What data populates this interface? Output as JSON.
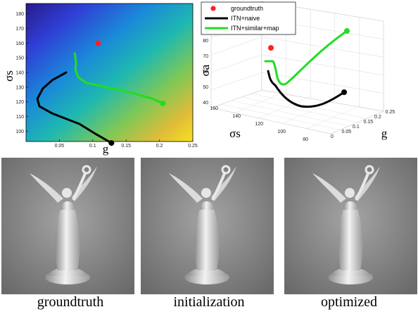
{
  "chart_data": [
    {
      "type": "line",
      "title": "",
      "xlabel": "g",
      "ylabel": "σs",
      "xlim": [
        0.0,
        0.25
      ],
      "ylim": [
        93,
        187
      ],
      "xticks": [
        "0.05",
        "0.1",
        "0.15",
        "0.2",
        "0.25"
      ],
      "yticks": [
        "100",
        "110",
        "120",
        "130",
        "140",
        "150",
        "160",
        "170",
        "180"
      ],
      "background": "heatmap gradient (blue top-left to yellow bottom-right)",
      "grid": false,
      "series": [
        {
          "name": "groundtruth",
          "color": "#ff2020",
          "points": [
            [
              0.108,
              160
            ]
          ]
        },
        {
          "name": "ITN+naive",
          "color": "#000000",
          "points": [
            [
              0.06,
              140
            ],
            [
              0.04,
              135
            ],
            [
              0.025,
              129
            ],
            [
              0.017,
              122
            ],
            [
              0.02,
              117
            ],
            [
              0.04,
              112
            ],
            [
              0.08,
              105
            ],
            [
              0.105,
              98
            ],
            [
              0.128,
              92
            ]
          ]
        },
        {
          "name": "ITN+similar+map",
          "color": "#22dd22",
          "points": [
            [
              0.073,
              153
            ],
            [
              0.075,
              147
            ],
            [
              0.074,
              142
            ],
            [
              0.078,
              137
            ],
            [
              0.09,
              133
            ],
            [
              0.12,
              130
            ],
            [
              0.16,
              126
            ],
            [
              0.19,
              122
            ],
            [
              0.205,
              119
            ]
          ]
        }
      ]
    },
    {
      "type": "line",
      "title": "",
      "xlabel": "g",
      "ylabel": "σs",
      "zlabel": "σa",
      "xticks": [
        "0",
        "0.05",
        "0.1",
        "0.15",
        "0.2",
        "0.25"
      ],
      "yticks": [
        "160",
        "140",
        "120",
        "100",
        "80"
      ],
      "zticks": [
        "40",
        "50",
        "60",
        "70",
        "80"
      ],
      "grid": true,
      "legend": {
        "position": "top-left",
        "entries": [
          "groundtruth",
          "ITN+naive",
          "ITN+similar+map"
        ]
      },
      "series": [
        {
          "name": "groundtruth",
          "color": "#ff2020"
        },
        {
          "name": "ITN+naive",
          "color": "#000000"
        },
        {
          "name": "ITN+similar+map",
          "color": "#22dd22"
        }
      ]
    }
  ],
  "captions": [
    "groundtruth",
    "initialization",
    "optimized"
  ],
  "photo_alt": [
    "angel statue render",
    "angel statue render",
    "angel statue render"
  ]
}
